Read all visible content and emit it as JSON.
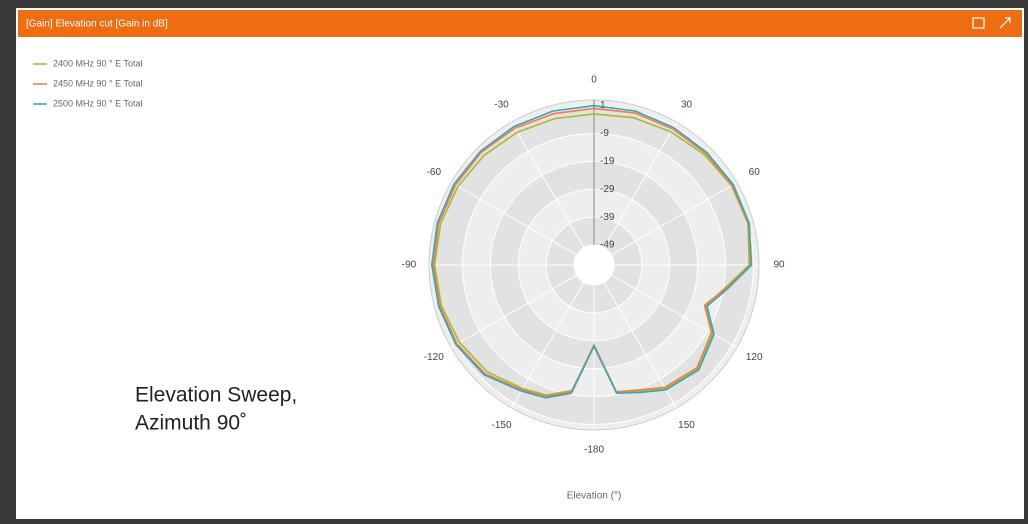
{
  "title": "[Gain] Elevation cut [Gain in dB]",
  "chart_data": {
    "type": "polar",
    "axis_label": "Elevation (°)",
    "annotation": [
      "Elevation Sweep,",
      "Azimuth 90˚"
    ],
    "x": [
      -180,
      -170,
      -160,
      -150,
      -135,
      -120,
      -105,
      -90,
      -75,
      -60,
      -45,
      -30,
      -15,
      0,
      15,
      30,
      45,
      60,
      75,
      90,
      100,
      110,
      120,
      135,
      150,
      160,
      170
    ],
    "series": [
      {
        "name": "2400 MHz 90 ° E Total",
        "color": "#a9b832",
        "values": [
          -27,
          -10.5,
          -6.5,
          -5,
          -2,
          -0.5,
          0.5,
          1,
          0.8,
          0.2,
          -0.5,
          -1.2,
          -1.8,
          -2,
          -1.5,
          -1,
          -0.2,
          0.8,
          1,
          -0.5,
          -8.5,
          -13.5,
          -7,
          -3.5,
          -5,
          -8,
          -10
        ]
      },
      {
        "name": "2450 MHz 90 ° E Total",
        "color": "#f47c4c",
        "values": [
          -27.5,
          -10,
          -6,
          -4.5,
          -1,
          0.5,
          1,
          1.5,
          1.5,
          1.2,
          1,
          0.5,
          0,
          0,
          0.3,
          0.2,
          0.5,
          1,
          1.2,
          0,
          -8,
          -14,
          -7.5,
          -4,
          -5.5,
          -8.5,
          -10
        ]
      },
      {
        "name": "2500 MHz 90 ° E Total",
        "color": "#3aa6b8",
        "values": [
          -27,
          -9.5,
          -5.5,
          -4,
          -0.5,
          1,
          1.5,
          2,
          2,
          1.8,
          1.5,
          1.2,
          1,
          1,
          1,
          0.8,
          1,
          1.5,
          1.5,
          0.3,
          -7.5,
          -13,
          -6.5,
          -3,
          -4.5,
          -7.5,
          -9.5
        ]
      }
    ],
    "ylim": [
      -49,
      3
    ],
    "yticks": [
      1,
      -9,
      -19,
      -29,
      -39,
      -49
    ],
    "thetaticks": [
      0,
      30,
      60,
      90,
      120,
      150,
      -180,
      -150,
      -120,
      -90,
      -60,
      -30
    ],
    "grid": true,
    "legend": "upper left"
  }
}
